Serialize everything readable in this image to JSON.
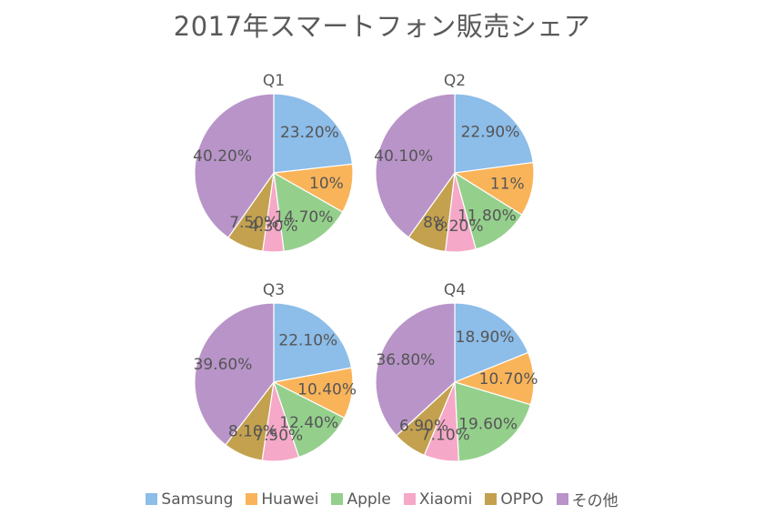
{
  "colors": {
    "Samsung": "#8dbde9",
    "Huawei": "#f9b45a",
    "Apple": "#94d08c",
    "Xiaomi": "#f6a8c8",
    "OPPO": "#c3a14e",
    "その他": "#b894c8"
  },
  "chart_data": {
    "type": "pie",
    "title": "2017年スマートフォン販売シェア",
    "legend_position": "bottom",
    "categories": [
      "Samsung",
      "Huawei",
      "Apple",
      "Xiaomi",
      "OPPO",
      "その他"
    ],
    "pies": [
      {
        "name": "Q1",
        "values": [
          23.2,
          10,
          14.7,
          4.3,
          7.5,
          40.2
        ],
        "labels": [
          "23.20%",
          "10%",
          "14.70%",
          "4.30%",
          "7.50%",
          "40.20%"
        ]
      },
      {
        "name": "Q2",
        "values": [
          22.9,
          11,
          11.8,
          6.2,
          8,
          40.1
        ],
        "labels": [
          "22.90%",
          "11%",
          "11.80%",
          "6.20%",
          "8%",
          "40.10%"
        ]
      },
      {
        "name": "Q3",
        "values": [
          22.1,
          10.4,
          12.4,
          7.5,
          8.1,
          39.6
        ],
        "labels": [
          "22.10%",
          "10.40%",
          "12.40%",
          "7.50%",
          "8.10%",
          "39.60%"
        ]
      },
      {
        "name": "Q4",
        "values": [
          18.9,
          10.7,
          19.6,
          7.1,
          6.9,
          36.8
        ],
        "labels": [
          "18.90%",
          "10.70%",
          "19.60%",
          "7.10%",
          "6.90%",
          "36.80%"
        ]
      }
    ]
  }
}
